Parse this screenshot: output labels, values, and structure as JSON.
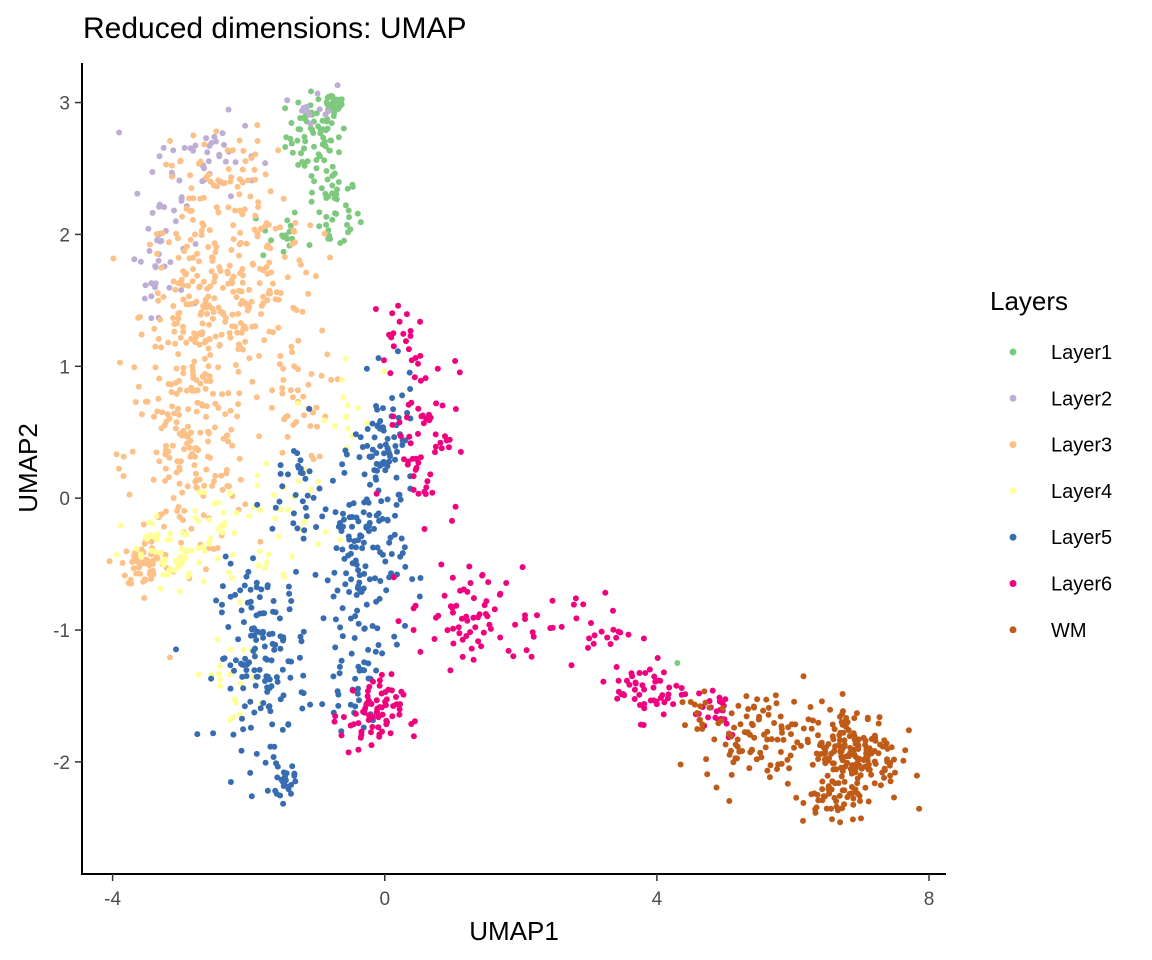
{
  "chart_data": {
    "type": "scatter",
    "title": "Reduced dimensions: UMAP",
    "xlabel": "UMAP1",
    "ylabel": "UMAP2",
    "xlim": [
      -4.45,
      8.25
    ],
    "ylim": [
      -2.85,
      3.3
    ],
    "x_ticks": [
      -4,
      0,
      4,
      8
    ],
    "y_ticks": [
      3,
      2,
      1,
      0,
      -1,
      -2
    ],
    "grid": false,
    "legend": {
      "title": "Layers",
      "placement": "right",
      "entries": [
        {
          "name": "Layer1",
          "color": "#7FC97F"
        },
        {
          "name": "Layer2",
          "color": "#BEAED4"
        },
        {
          "name": "Layer3",
          "color": "#FDC086"
        },
        {
          "name": "Layer4",
          "color": "#FFFF99"
        },
        {
          "name": "Layer5",
          "color": "#386CB0"
        },
        {
          "name": "Layer6",
          "color": "#F0027F"
        },
        {
          "name": "WM",
          "color": "#BF5B17"
        }
      ]
    },
    "series": [
      {
        "name": "Layer1",
        "color": "#7FC97F",
        "clusters": [
          {
            "center": [
              -1.0,
              2.75
            ],
            "spread": [
              0.3,
              0.22
            ],
            "n": 70
          },
          {
            "center": [
              -0.75,
              2.2
            ],
            "spread": [
              0.25,
              0.25
            ],
            "n": 45
          },
          {
            "center": [
              -1.55,
              2.0
            ],
            "spread": [
              0.2,
              0.15
            ],
            "n": 15
          },
          {
            "center": [
              -0.75,
              3.0
            ],
            "spread": [
              0.12,
              0.06
            ],
            "n": 25
          }
        ],
        "points": [
          [
            4.3,
            -1.25
          ]
        ]
      },
      {
        "name": "Layer2",
        "color": "#BEAED4",
        "clusters": [
          {
            "center": [
              -2.6,
              2.6
            ],
            "spread": [
              0.5,
              0.2
            ],
            "n": 40
          },
          {
            "center": [
              -3.3,
              2.0
            ],
            "spread": [
              0.25,
              0.35
            ],
            "n": 30
          },
          {
            "center": [
              -3.4,
              1.5
            ],
            "spread": [
              0.2,
              0.2
            ],
            "n": 10
          },
          {
            "center": [
              -1.0,
              3.0
            ],
            "spread": [
              0.2,
              0.1
            ],
            "n": 12
          }
        ],
        "points": []
      },
      {
        "name": "Layer3",
        "color": "#FDC086",
        "clusters": [
          {
            "center": [
              -2.6,
              1.4
            ],
            "spread": [
              0.65,
              0.55
            ],
            "n": 230
          },
          {
            "center": [
              -2.9,
              0.3
            ],
            "spread": [
              0.6,
              0.5
            ],
            "n": 150
          },
          {
            "center": [
              -3.5,
              -0.5
            ],
            "spread": [
              0.25,
              0.12
            ],
            "n": 60
          },
          {
            "center": [
              -1.7,
              1.8
            ],
            "spread": [
              0.5,
              0.35
            ],
            "n": 60
          },
          {
            "center": [
              -1.4,
              0.8
            ],
            "spread": [
              0.4,
              0.35
            ],
            "n": 45
          },
          {
            "center": [
              -2.4,
              2.45
            ],
            "spread": [
              0.5,
              0.25
            ],
            "n": 50
          }
        ],
        "points": []
      },
      {
        "name": "Layer4",
        "color": "#FFFF99",
        "clusters": [
          {
            "center": [
              -3.1,
              -0.45
            ],
            "spread": [
              0.5,
              0.22
            ],
            "n": 55
          },
          {
            "center": [
              -2.3,
              -0.2
            ],
            "spread": [
              0.45,
              0.3
            ],
            "n": 30
          },
          {
            "center": [
              -1.3,
              -0.1
            ],
            "spread": [
              0.4,
              0.3
            ],
            "n": 25
          },
          {
            "center": [
              -2.3,
              -1.4
            ],
            "spread": [
              0.3,
              0.2
            ],
            "n": 20
          },
          {
            "center": [
              -0.6,
              0.6
            ],
            "spread": [
              0.3,
              0.4
            ],
            "n": 15
          }
        ],
        "points": []
      },
      {
        "name": "Layer5",
        "color": "#386CB0",
        "clusters": [
          {
            "center": [
              -1.8,
              -1.2
            ],
            "spread": [
              0.45,
              0.45
            ],
            "n": 140
          },
          {
            "center": [
              -0.3,
              -0.5
            ],
            "spread": [
              0.4,
              0.45
            ],
            "n": 110
          },
          {
            "center": [
              0.0,
              0.35
            ],
            "spread": [
              0.3,
              0.35
            ],
            "n": 80
          },
          {
            "center": [
              -1.2,
              0.0
            ],
            "spread": [
              0.4,
              0.35
            ],
            "n": 40
          },
          {
            "center": [
              -1.5,
              -2.15
            ],
            "spread": [
              0.12,
              0.1
            ],
            "n": 25
          },
          {
            "center": [
              -0.4,
              -1.3
            ],
            "spread": [
              0.35,
              0.3
            ],
            "n": 40
          }
        ],
        "points": []
      },
      {
        "name": "Layer6",
        "color": "#F0027F",
        "clusters": [
          {
            "center": [
              0.55,
              0.55
            ],
            "spread": [
              0.35,
              0.45
            ],
            "n": 65
          },
          {
            "center": [
              -0.2,
              -1.65
            ],
            "spread": [
              0.3,
              0.2
            ],
            "n": 70
          },
          {
            "center": [
              1.2,
              -0.9
            ],
            "spread": [
              0.55,
              0.25
            ],
            "n": 60
          },
          {
            "center": [
              2.8,
              -1.0
            ],
            "spread": [
              0.6,
              0.2
            ],
            "n": 35
          },
          {
            "center": [
              3.9,
              -1.45
            ],
            "spread": [
              0.35,
              0.15
            ],
            "n": 50
          },
          {
            "center": [
              4.8,
              -1.6
            ],
            "spread": [
              0.3,
              0.15
            ],
            "n": 25
          },
          {
            "center": [
              0.2,
              1.3
            ],
            "spread": [
              0.25,
              0.2
            ],
            "n": 15
          }
        ],
        "points": []
      },
      {
        "name": "WM",
        "color": "#BF5B17",
        "clusters": [
          {
            "center": [
              6.9,
              -1.95
            ],
            "spread": [
              0.45,
              0.25
            ],
            "n": 190
          },
          {
            "center": [
              5.5,
              -1.8
            ],
            "spread": [
              0.55,
              0.22
            ],
            "n": 95
          },
          {
            "center": [
              6.6,
              -2.3
            ],
            "spread": [
              0.3,
              0.12
            ],
            "n": 25
          },
          {
            "center": [
              4.6,
              -1.65
            ],
            "spread": [
              0.25,
              0.12
            ],
            "n": 12
          }
        ],
        "points": []
      }
    ]
  }
}
